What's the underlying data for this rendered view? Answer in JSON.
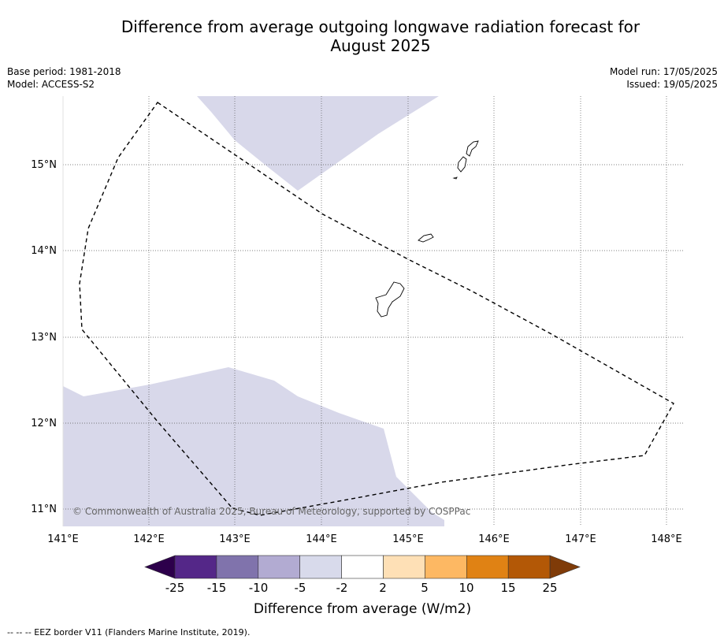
{
  "title_line1": "Difference from average outgoing longwave radiation forecast for",
  "title_line2": "August 2025",
  "base_period": "Base period: 1981-2018",
  "model": "Model: ACCESS-S2",
  "model_run": "Model run: 17/05/2025",
  "issued": "Issued: 19/05/2025",
  "credit": "© Commonwealth of Australia 2025, Bureau of Meteorology, supported by COSPPac",
  "footer": "--  --  -- EEZ border V11 (Flanders Marine Institute, 2019).",
  "map": {
    "lon_labels": [
      "141°E",
      "142°E",
      "143°E",
      "144°E",
      "145°E",
      "146°E",
      "147°E",
      "148°E"
    ],
    "lat_labels": [
      "15°N",
      "14°N",
      "13°N",
      "12°N",
      "11°N"
    ],
    "shading_color": "#d8d8ea",
    "boundary": "EEZ border (dashed)"
  },
  "colorbar": {
    "title": "Difference from average (W/m2)",
    "ticks": [
      "-25",
      "-15",
      "-10",
      "-5",
      "-2",
      "2",
      "5",
      "10",
      "15",
      "25"
    ],
    "colors": [
      "#2d004b",
      "#542788",
      "#8073ac",
      "#b2abd2",
      "#d8daeb",
      "#ffffff",
      "#fee0b6",
      "#fdb863",
      "#e08214",
      "#b35806",
      "#7f3b08"
    ]
  }
}
